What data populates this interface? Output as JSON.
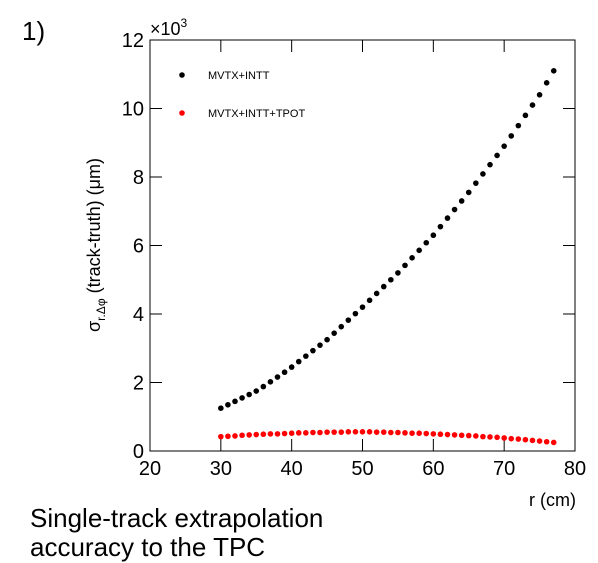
{
  "panel_label": "1)",
  "caption": [
    "Single-track extrapolation",
    "accuracy to the TPC"
  ],
  "chart_data": {
    "type": "scatter",
    "x_label": "r (cm)",
    "y_label": {
      "symbol": "σ",
      "subscript": "r.Δφ",
      "rest": "(track-truth) (μm)"
    },
    "y_multiplier": {
      "base": "×10",
      "exponent": "3"
    },
    "xlim": [
      20,
      80
    ],
    "xticks": [
      20,
      30,
      40,
      50,
      60,
      70,
      80
    ],
    "ylim": [
      0,
      12
    ],
    "yticks": [
      0,
      2,
      4,
      6,
      8,
      10,
      12
    ],
    "legend": "upper-left",
    "x": [
      30,
      31,
      32,
      33,
      34,
      35,
      36,
      37,
      38,
      39,
      40,
      41,
      42,
      43,
      44,
      45,
      46,
      47,
      48,
      49,
      50,
      51,
      52,
      53,
      54,
      55,
      56,
      57,
      58,
      59,
      60,
      61,
      62,
      63,
      64,
      65,
      66,
      67,
      68,
      69,
      70,
      71,
      72,
      73,
      74,
      75,
      76,
      77
    ],
    "series": [
      {
        "name": "MVTX+INTT",
        "color": "#000000",
        "values": [
          1.25,
          1.35,
          1.45,
          1.55,
          1.65,
          1.75,
          1.88,
          2.02,
          2.16,
          2.3,
          2.45,
          2.61,
          2.77,
          2.93,
          3.09,
          3.25,
          3.44,
          3.63,
          3.82,
          4.01,
          4.2,
          4.4,
          4.6,
          4.8,
          5.0,
          5.2,
          5.42,
          5.64,
          5.86,
          6.08,
          6.3,
          6.55,
          6.8,
          7.05,
          7.3,
          7.55,
          7.82,
          8.09,
          8.36,
          8.63,
          8.9,
          9.2,
          9.5,
          9.8,
          10.1,
          10.4,
          10.75,
          11.1
        ]
      },
      {
        "name": "MVTX+INTT+TPOT",
        "color": "#ff0000",
        "values": [
          0.42,
          0.43,
          0.44,
          0.46,
          0.47,
          0.48,
          0.49,
          0.5,
          0.5,
          0.51,
          0.52,
          0.53,
          0.53,
          0.54,
          0.54,
          0.55,
          0.55,
          0.55,
          0.56,
          0.56,
          0.56,
          0.56,
          0.55,
          0.55,
          0.54,
          0.54,
          0.53,
          0.52,
          0.52,
          0.51,
          0.5,
          0.49,
          0.48,
          0.47,
          0.46,
          0.45,
          0.44,
          0.42,
          0.41,
          0.4,
          0.38,
          0.36,
          0.35,
          0.33,
          0.31,
          0.29,
          0.27,
          0.25
        ]
      }
    ]
  }
}
